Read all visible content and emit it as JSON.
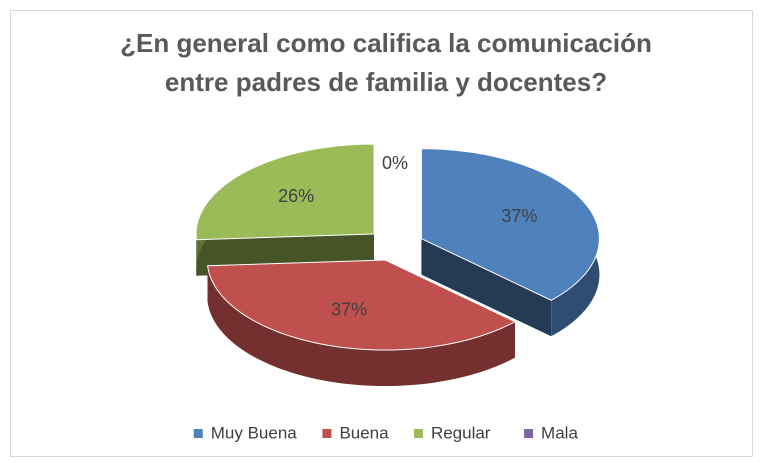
{
  "chart_data": {
    "type": "pie3d",
    "title": "¿En general como califica la comunicación entre padres de familia y docentes?",
    "title_lines": [
      "¿En general como califica la comunicación",
      "entre padres de familia y docentes?"
    ],
    "categories": [
      "Muy Buena",
      "Buena",
      "Regular",
      "Mala"
    ],
    "values": [
      37,
      37,
      26,
      0
    ],
    "value_labels": [
      "37%",
      "37%",
      "26%",
      "0%"
    ],
    "colors": [
      "#4f81bd",
      "#c0504d",
      "#9bbb59",
      "#8064a2"
    ],
    "legend": "bottom"
  }
}
